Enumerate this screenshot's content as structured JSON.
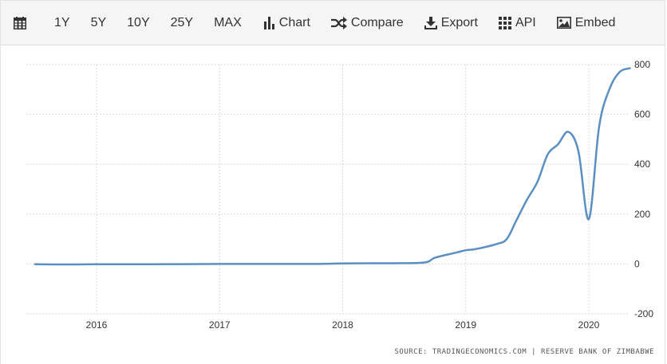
{
  "toolbar": {
    "items": [
      {
        "key": "calendar",
        "label": "",
        "icon": "calendar-icon"
      },
      {
        "key": "1y",
        "label": "1Y"
      },
      {
        "key": "5y",
        "label": "5Y"
      },
      {
        "key": "10y",
        "label": "10Y"
      },
      {
        "key": "25y",
        "label": "25Y"
      },
      {
        "key": "max",
        "label": "MAX"
      },
      {
        "key": "chart",
        "label": "Chart",
        "icon": "bar-chart-icon"
      },
      {
        "key": "compare",
        "label": "Compare",
        "icon": "shuffle-icon"
      },
      {
        "key": "export",
        "label": "Export",
        "icon": "download-icon"
      },
      {
        "key": "api",
        "label": "API",
        "icon": "grid-icon"
      },
      {
        "key": "embed",
        "label": "Embed",
        "icon": "image-icon"
      }
    ]
  },
  "source": "SOURCE: TRADINGECONOMICS.COM | RESERVE BANK OF ZIMBABWE",
  "colors": {
    "line": "#5b8fc2",
    "grid": "#d9d9d9"
  },
  "chart_data": {
    "type": "line",
    "title": "",
    "xlabel": "",
    "ylabel": "",
    "ylim": [
      -200,
      800
    ],
    "yticks": [
      800,
      600,
      400,
      200,
      0,
      -200
    ],
    "xticks": [
      "2016",
      "2017",
      "2018",
      "2019",
      "2020"
    ],
    "grid": true,
    "series": [
      {
        "x": [
          "2015-07",
          "2015-10",
          "2016-01",
          "2016-06",
          "2017-01",
          "2017-06",
          "2017-10",
          "2018-01",
          "2018-04",
          "2018-06",
          "2018-09",
          "2018-10",
          "2018-12",
          "2019-01",
          "2019-02",
          "2019-04",
          "2019-05",
          "2019-06",
          "2019-07",
          "2019-08",
          "2019-09",
          "2019-10",
          "2019-11",
          "2019-12",
          "2020-01",
          "2020-02",
          "2020-03",
          "2020-04",
          "2020-05"
        ],
        "y": [
          -1,
          -2,
          -1,
          -1,
          0,
          0,
          0,
          2,
          3,
          3,
          6,
          25,
          45,
          55,
          60,
          80,
          100,
          180,
          260,
          330,
          440,
          480,
          530,
          450,
          180,
          550,
          700,
          770,
          785
        ]
      }
    ]
  }
}
